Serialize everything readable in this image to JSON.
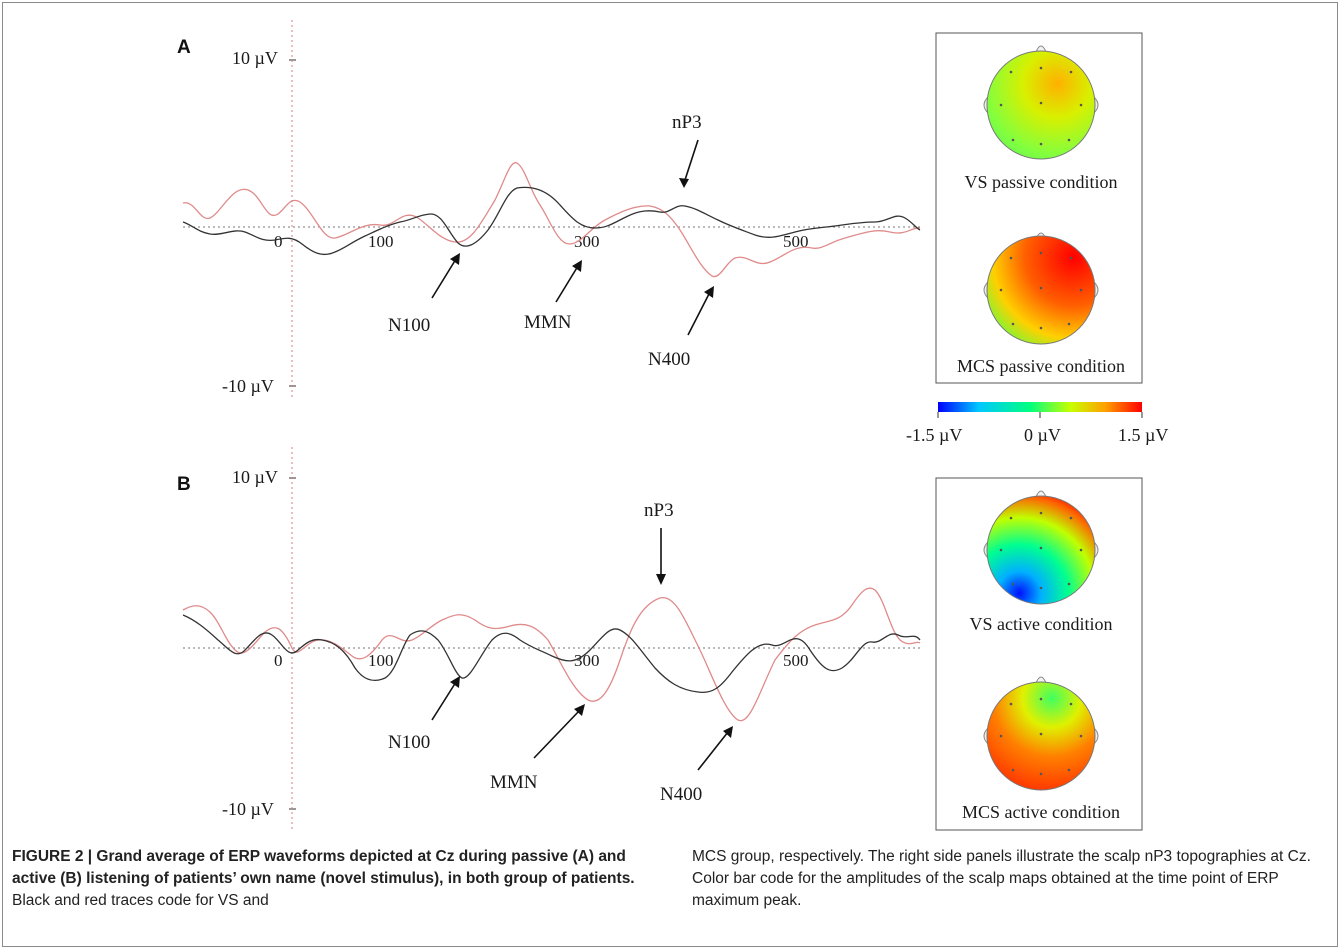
{
  "panels": [
    {
      "letter": "A",
      "y_top_label": "10 µV",
      "y_bottom_label": "-10 µV",
      "x_ticks": [
        "0",
        "100",
        "300",
        "500"
      ],
      "annotations": {
        "n100": "N100",
        "mmn": "MMN",
        "n400": "N400",
        "np3": "nP3"
      },
      "maps": [
        {
          "label": "VS passive condition",
          "type": "vs_passive"
        },
        {
          "label": "MCS passive condition",
          "type": "mcs_passive"
        }
      ]
    },
    {
      "letter": "B",
      "y_top_label": "10 µV",
      "y_bottom_label": "-10 µV",
      "x_ticks": [
        "0",
        "100",
        "300",
        "500"
      ],
      "annotations": {
        "n100": "N100",
        "mmn": "MMN",
        "n400": "N400",
        "np3": "nP3"
      },
      "maps": [
        {
          "label": "VS active condition",
          "type": "vs_active"
        },
        {
          "label": "MCS active condition",
          "type": "mcs_active"
        }
      ]
    }
  ],
  "colorbar": {
    "min_label": "-1.5 µV",
    "mid_label": "0 µV",
    "max_label": "1.5 µV",
    "colors": [
      "#0000ff",
      "#00c8ff",
      "#00ff80",
      "#c8ff00",
      "#ffa000",
      "#ff0000"
    ]
  },
  "trace_colors": {
    "vs": "#333333",
    "mcs": "#e08a8a"
  },
  "caption": {
    "bold": "FIGURE 2 | Grand average of ERP waveforms depicted at Cz during passive (A) and active (B) listening of patients’ own name (novel stimulus), in both group of patients.",
    "left_rest": " Black and red traces code for VS and",
    "right": "MCS group, respectively. The right side panels illustrate the scalp nP3 topographies at Cz. Color bar code for the amplitudes of the scalp maps obtained at the time point of ERP maximum peak."
  }
}
